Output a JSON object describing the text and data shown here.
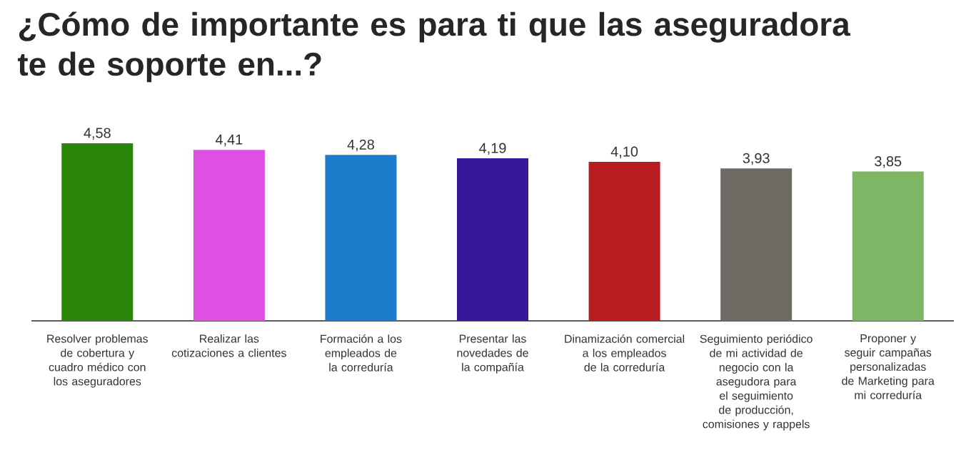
{
  "chart_data": {
    "type": "bar",
    "title": "¿Cómo de importante es para ti que las aseguradora te de soporte en...?",
    "categories": [
      "Resolver problemas de cobertura y cuadro médico con los aseguradores",
      "Realizar las cotizaciones a clientes",
      "Formación a los empleados de la correduría",
      "Presentar las novedades de la compañía",
      "Dinamización comercial a los empleados de la correduría",
      "Seguimiento periódico de mi actividad de negocio con la asegudora para el seguimiento de producción, comisiones y rappels",
      "Proponer y seguir campañas personalizadas de Marketing para mi correduría"
    ],
    "values": [
      4.58,
      4.41,
      4.28,
      4.19,
      4.1,
      3.93,
      3.85
    ],
    "value_labels": [
      "4,58",
      "4,41",
      "4,28",
      "4,19",
      "4,10",
      "3,93",
      "3,85"
    ],
    "colors": [
      "#2a8508",
      "#de4fe3",
      "#1c7bca",
      "#39179a",
      "#b91c21",
      "#6e6a64",
      "#7db665"
    ],
    "tick_labels": "x"
  }
}
